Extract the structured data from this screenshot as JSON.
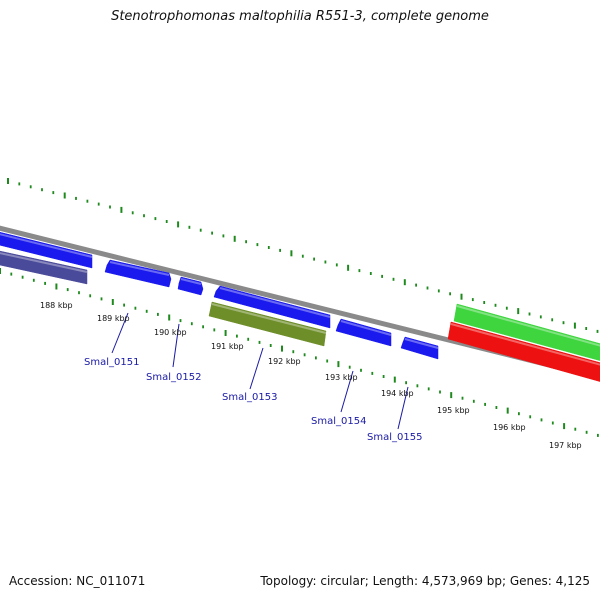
{
  "title": "Stenotrophomonas maltophilia R551-3, complete genome",
  "footer": {
    "accession": "Accession: NC_011071",
    "summary": "Topology: circular; Length: 4,573,969 bp; Genes: 4,125"
  },
  "colors": {
    "background": "#ffffff",
    "backbone": "#8a8a8a",
    "tick": "#1e8a1e",
    "cds_blue": "#1a1aee",
    "cds_dark": "#4a4a9a",
    "cds_olive": "#6e8e2a",
    "cds_green": "#3fd53f",
    "cds_red": "#ee1111",
    "gene_label": "#1a1aa6"
  },
  "kbp_labels": [
    "188 kbp",
    "189 kbp",
    "190 kbp",
    "191 kbp",
    "192 kbp",
    "193 kbp",
    "194 kbp",
    "195 kbp",
    "196 kbp",
    "197 kbp"
  ],
  "gene_labels": [
    "Smal_0151",
    "Smal_0152",
    "Smal_0153",
    "Smal_0154",
    "Smal_0155"
  ],
  "features": [
    {
      "name": "forward-cds",
      "color": "blue"
    },
    {
      "name": "reverse-cds",
      "color": "dark"
    },
    {
      "name": "cds-smal-0151",
      "color": "blue"
    },
    {
      "name": "cds-smal-0152",
      "color": "blue"
    },
    {
      "name": "cds-smal-0153",
      "color": "blue"
    },
    {
      "name": "cds-smal-0153-olive",
      "color": "olive"
    },
    {
      "name": "cds-smal-0154",
      "color": "blue"
    },
    {
      "name": "cds-smal-0155",
      "color": "blue"
    },
    {
      "name": "cds-green",
      "color": "green"
    },
    {
      "name": "cds-red",
      "color": "red"
    }
  ]
}
